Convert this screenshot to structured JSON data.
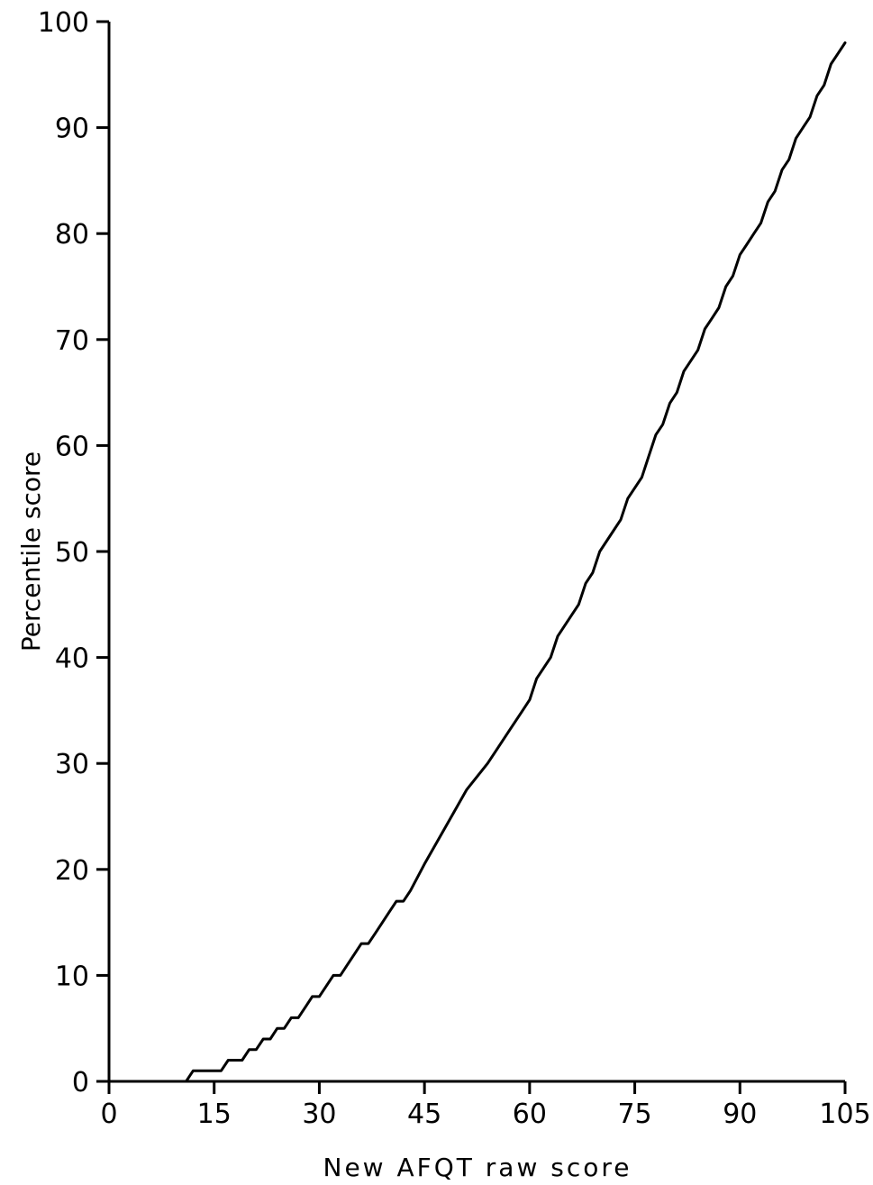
{
  "chart_data": {
    "type": "line",
    "title": "",
    "xlabel": "New AFQT raw score",
    "ylabel": "Percentile score",
    "xlim": [
      0,
      105
    ],
    "ylim": [
      0,
      100
    ],
    "xticks": [
      0,
      15,
      30,
      45,
      60,
      75,
      90,
      105
    ],
    "yticks": [
      0,
      10,
      20,
      30,
      40,
      50,
      60,
      70,
      80,
      90,
      100
    ],
    "grid": false,
    "legend": "none",
    "colors": {
      "line": "#000000",
      "axis": "#000000"
    },
    "series": [
      {
        "x": [
          0,
          11,
          11.5,
          12,
          13,
          15,
          16,
          17,
          18,
          19,
          20,
          21,
          22,
          23,
          24,
          25,
          26,
          27,
          28,
          29,
          30,
          31,
          32,
          33,
          34,
          35,
          36,
          37,
          38,
          39,
          40,
          41,
          42,
          43,
          45,
          48,
          51,
          54,
          55,
          57,
          59,
          60,
          61,
          63,
          64,
          66,
          67,
          68,
          69,
          70,
          72,
          73,
          74,
          75,
          76,
          77,
          78,
          79,
          80,
          81,
          82,
          83,
          84,
          85,
          86,
          87,
          88,
          89,
          90,
          91,
          92,
          93,
          94,
          95,
          96,
          97,
          98,
          99,
          100,
          101,
          102,
          103,
          104,
          105
        ],
        "y": [
          0,
          0,
          0.5,
          1,
          1,
          1,
          1,
          2,
          2,
          2,
          3,
          3,
          4,
          4,
          5,
          5,
          6,
          6,
          7,
          8,
          8,
          9,
          10,
          10,
          11,
          12,
          13,
          13,
          14,
          15,
          16,
          17,
          17,
          18,
          20.5,
          24,
          27.5,
          30,
          31,
          33,
          35,
          36,
          38,
          40,
          42,
          44,
          45,
          47,
          48,
          50,
          52,
          53,
          55,
          56,
          57,
          59,
          61,
          62,
          64,
          65,
          67,
          68,
          69,
          71,
          72,
          73,
          75,
          76,
          78,
          79,
          80,
          81,
          83,
          84,
          86,
          87,
          89,
          90,
          91,
          93,
          94,
          96,
          97,
          98
        ]
      }
    ]
  }
}
